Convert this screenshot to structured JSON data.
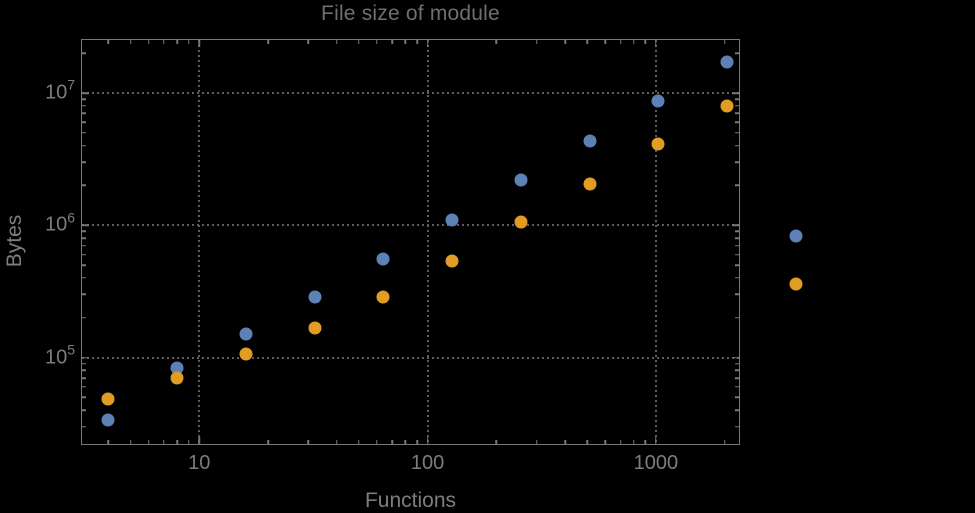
{
  "title": "File size of module",
  "colors": {
    "background": "#000000",
    "frame": "#787878",
    "gridline": "#5e5e5e",
    "title_text": "#6f6f6f",
    "label_text": "#7d7d7d",
    "series_blue": "#5E81B5",
    "series_orange": "#E19C24"
  },
  "chart_data": {
    "type": "scatter",
    "title": "File size of module",
    "xlabel": "Functions",
    "ylabel": "Bytes",
    "x_scale": "log",
    "y_scale": "log",
    "grid": "dotted-at-major-ticks",
    "legend": "none",
    "xlim": [
      3.1,
      2360
    ],
    "ylim": [
      21500,
      25200000
    ],
    "x": [
      4,
      8,
      16,
      32,
      64,
      128,
      256,
      512,
      1024,
      2048,
      4096
    ],
    "series": [
      {
        "name": "series-1-blue",
        "color": "#5E81B5",
        "values": [
          33700,
          83000,
          151000,
          287000,
          556000,
          1090000,
          2190000,
          4320000,
          8660000,
          17200000,
          826000
        ]
      },
      {
        "name": "series-2-orange",
        "color": "#E19C24",
        "values": [
          48500,
          70300,
          106000,
          167000,
          287000,
          534000,
          1050000,
          2040000,
          4100000,
          7980000,
          358000
        ]
      }
    ],
    "x_ticks": [
      {
        "value": 10,
        "label": "10"
      },
      {
        "value": 100,
        "label": "100"
      },
      {
        "value": 1000,
        "label": "1000"
      }
    ],
    "y_ticks": [
      {
        "value": 100000,
        "base": "10",
        "exponent": "5"
      },
      {
        "value": 1000000,
        "base": "10",
        "exponent": "6"
      },
      {
        "value": 10000000,
        "base": "10",
        "exponent": "7"
      }
    ]
  }
}
